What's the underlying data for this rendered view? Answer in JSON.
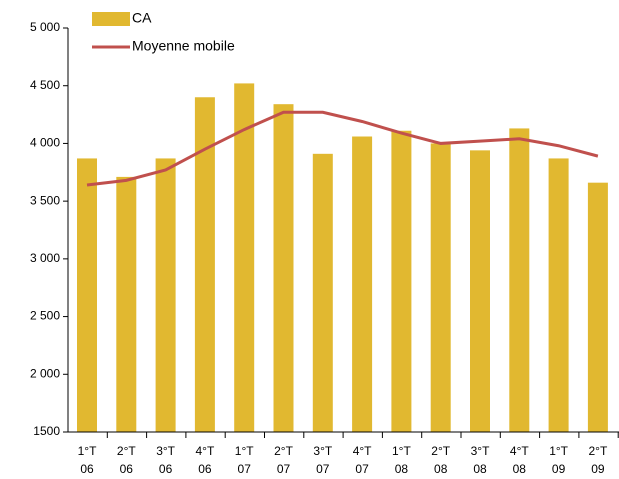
{
  "chart_data": {
    "type": "bar_line",
    "categories": [
      "1°T 06",
      "2°T 06",
      "3°T 06",
      "4°T 06",
      "1°T 07",
      "2°T 07",
      "3°T 07",
      "4°T 07",
      "1°T 08",
      "2°T 08",
      "3°T 08",
      "4°T 08",
      "1°T 09",
      "2°T 09"
    ],
    "series": [
      {
        "name": "CA",
        "type": "bar",
        "color": "#e1b830",
        "values": [
          3870,
          3710,
          3870,
          4400,
          4520,
          4340,
          3910,
          4060,
          4110,
          4000,
          3940,
          4130,
          3870,
          3660
        ]
      },
      {
        "name": "Moyenne mobile",
        "type": "line",
        "color": "#c0504d",
        "values": [
          3640,
          3680,
          3770,
          3950,
          4120,
          4270,
          4270,
          4190,
          4090,
          4000,
          4020,
          4040,
          3980,
          3890
        ]
      }
    ],
    "ylim": [
      1500,
      5000
    ],
    "yticks": [
      1500,
      {
        "value": 2000,
        "label": "2 000"
      },
      {
        "value": 2500,
        "label": "2 500"
      },
      {
        "value": 3000,
        "label": "3 000"
      },
      {
        "value": 3500,
        "label": "3 500"
      },
      {
        "value": 4000,
        "label": "4 000"
      },
      {
        "value": 4500,
        "label": "4 500"
      },
      {
        "value": 5000,
        "label": "5 000"
      }
    ]
  }
}
